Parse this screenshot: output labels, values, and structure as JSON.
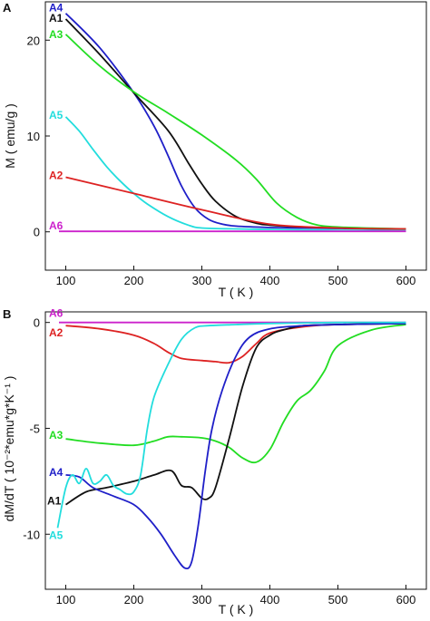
{
  "chart_data": [
    {
      "panel": "A",
      "type": "line",
      "xlabel": "T ( K )",
      "ylabel": "M ( emu/g )",
      "xlim": [
        70,
        630
      ],
      "ylim": [
        -4,
        24
      ],
      "xticks": [
        100,
        200,
        300,
        400,
        500,
        600
      ],
      "yticks": [
        0,
        10,
        20
      ],
      "grid": false,
      "series": [
        {
          "name": "A4",
          "color": "#1f1fc8",
          "x": [
            100,
            150,
            200,
            230,
            250,
            270,
            290,
            310,
            330,
            350,
            400,
            450,
            500,
            550,
            600
          ],
          "y": [
            22.8,
            19.2,
            14.5,
            11.0,
            8.0,
            4.8,
            2.5,
            1.3,
            0.8,
            0.6,
            0.45,
            0.4,
            0.35,
            0.3,
            0.28
          ]
        },
        {
          "name": "A1",
          "color": "#111111",
          "x": [
            100,
            150,
            200,
            250,
            280,
            300,
            320,
            350,
            380,
            400,
            450,
            500,
            550,
            600
          ],
          "y": [
            22.2,
            18.5,
            14.5,
            10.6,
            7.2,
            5.0,
            3.2,
            1.6,
            0.9,
            0.7,
            0.5,
            0.4,
            0.35,
            0.3
          ]
        },
        {
          "name": "A3",
          "color": "#22dd22",
          "x": [
            100,
            150,
            200,
            250,
            300,
            350,
            380,
            410,
            440,
            470,
            500,
            550,
            600
          ],
          "y": [
            20.6,
            17.3,
            14.6,
            12.4,
            10.1,
            7.5,
            5.5,
            3.0,
            1.5,
            0.7,
            0.5,
            0.38,
            0.3
          ]
        },
        {
          "name": "A5",
          "color": "#22dddd",
          "x": [
            100,
            120,
            140,
            160,
            180,
            200,
            220,
            250,
            280,
            300,
            350,
            400,
            450,
            500,
            550,
            600
          ],
          "y": [
            12.0,
            10.5,
            8.6,
            6.8,
            5.3,
            4.0,
            2.9,
            1.6,
            0.7,
            0.4,
            0.3,
            0.25,
            0.2,
            0.15,
            0.12,
            0.1
          ]
        },
        {
          "name": "A2",
          "color": "#dd2222",
          "x": [
            100,
            200,
            300,
            400,
            500,
            600
          ],
          "y": [
            5.7,
            4.0,
            2.3,
            0.8,
            0.4,
            0.3
          ]
        },
        {
          "name": "A6",
          "color": "#cc22cc",
          "x": [
            90,
            300,
            600
          ],
          "y": [
            0.05,
            0.05,
            0.05
          ]
        }
      ]
    },
    {
      "panel": "B",
      "type": "line",
      "xlabel": "T ( K )",
      "ylabel": "dM/dT ( 10⁻²*emu*g*K⁻¹ )",
      "xlim": [
        70,
        630
      ],
      "ylim": [
        -12.6,
        0.5
      ],
      "xticks": [
        100,
        200,
        300,
        400,
        500,
        600
      ],
      "yticks": [
        0,
        -5,
        -10
      ],
      "grid": false,
      "series": [
        {
          "name": "A6",
          "color": "#cc22cc",
          "x": [
            90,
            300,
            600
          ],
          "y": [
            0.0,
            0.0,
            0.0
          ]
        },
        {
          "name": "A2",
          "color": "#dd2222",
          "x": [
            100,
            150,
            200,
            230,
            250,
            270,
            300,
            320,
            340,
            360,
            380,
            400,
            450,
            500,
            600
          ],
          "y": [
            -0.15,
            -0.3,
            -0.6,
            -1.0,
            -1.4,
            -1.7,
            -1.8,
            -1.85,
            -1.9,
            -1.6,
            -1.0,
            -0.5,
            -0.2,
            -0.1,
            -0.05
          ]
        },
        {
          "name": "A3",
          "color": "#22dd22",
          "x": [
            100,
            150,
            200,
            230,
            250,
            270,
            300,
            320,
            340,
            360,
            380,
            400,
            420,
            440,
            460,
            480,
            500,
            550,
            600
          ],
          "y": [
            -5.5,
            -5.7,
            -5.8,
            -5.6,
            -5.4,
            -5.4,
            -5.45,
            -5.6,
            -5.9,
            -6.4,
            -6.6,
            -6.0,
            -4.7,
            -3.7,
            -3.2,
            -2.3,
            -1.1,
            -0.35,
            -0.1
          ]
        },
        {
          "name": "A1",
          "color": "#111111",
          "x": [
            100,
            130,
            160,
            200,
            230,
            255,
            270,
            285,
            300,
            310,
            320,
            340,
            360,
            380,
            400,
            420,
            450,
            500,
            600
          ],
          "y": [
            -8.6,
            -8.0,
            -7.8,
            -7.5,
            -7.2,
            -7.0,
            -7.7,
            -7.8,
            -8.3,
            -8.3,
            -7.8,
            -5.5,
            -3.0,
            -1.2,
            -0.6,
            -0.35,
            -0.15,
            -0.1,
            -0.05
          ]
        },
        {
          "name": "A4",
          "color": "#1f1fc8",
          "x": [
            100,
            120,
            140,
            170,
            200,
            220,
            240,
            260,
            275,
            285,
            295,
            305,
            315,
            330,
            350,
            370,
            400,
            450,
            500,
            600
          ],
          "y": [
            -7.2,
            -7.3,
            -7.8,
            -8.2,
            -8.6,
            -9.2,
            -10.0,
            -11.0,
            -11.6,
            -11.3,
            -9.5,
            -7.0,
            -5.0,
            -3.2,
            -1.6,
            -0.7,
            -0.3,
            -0.15,
            -0.1,
            -0.05
          ]
        },
        {
          "name": "A5",
          "color": "#22dddd",
          "x": [
            88,
            100,
            110,
            120,
            130,
            140,
            150,
            160,
            170,
            180,
            190,
            200,
            210,
            220,
            230,
            250,
            270,
            290,
            310,
            350,
            400,
            500,
            600
          ],
          "y": [
            -9.7,
            -7.8,
            -7.2,
            -7.6,
            -6.9,
            -7.6,
            -7.5,
            -7.2,
            -7.7,
            -7.9,
            -8.1,
            -8.0,
            -7.2,
            -5.0,
            -3.5,
            -2.0,
            -0.8,
            -0.25,
            -0.15,
            -0.1,
            -0.05,
            0.0,
            0.0
          ]
        }
      ]
    }
  ]
}
